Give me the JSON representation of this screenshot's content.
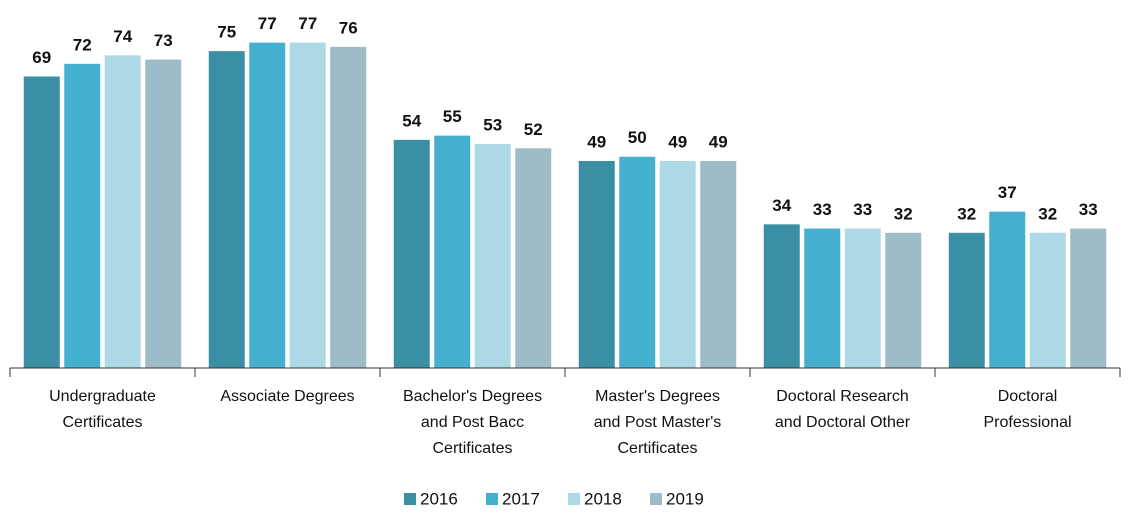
{
  "chart_data": {
    "type": "bar",
    "categories": [
      [
        "Undergraduate",
        "Certificates"
      ],
      [
        "Associate Degrees"
      ],
      [
        "Bachelor's Degrees",
        "and Post Bacc",
        "Certificates"
      ],
      [
        "Master's Degrees",
        "and Post Master's",
        "Certificates"
      ],
      [
        "Doctoral Research",
        "and Doctoral Other"
      ],
      [
        "Doctoral",
        "Professional"
      ]
    ],
    "series": [
      {
        "name": "2016",
        "color": "#3a8fa5",
        "values": [
          69,
          75,
          54,
          49,
          34,
          32
        ]
      },
      {
        "name": "2017",
        "color": "#45afcf",
        "values": [
          72,
          77,
          55,
          50,
          33,
          37
        ]
      },
      {
        "name": "2018",
        "color": "#add8e6",
        "values": [
          74,
          77,
          53,
          49,
          33,
          32
        ]
      },
      {
        "name": "2019",
        "color": "#9dbcc8",
        "values": [
          73,
          76,
          52,
          49,
          32,
          33
        ]
      }
    ],
    "ylim": [
      0,
      80
    ],
    "legend": "bottom"
  }
}
